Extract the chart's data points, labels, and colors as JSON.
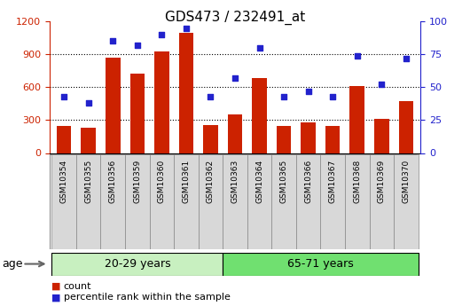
{
  "title": "GDS473 / 232491_at",
  "samples": [
    "GSM10354",
    "GSM10355",
    "GSM10356",
    "GSM10359",
    "GSM10360",
    "GSM10361",
    "GSM10362",
    "GSM10363",
    "GSM10364",
    "GSM10365",
    "GSM10366",
    "GSM10367",
    "GSM10368",
    "GSM10369",
    "GSM10370"
  ],
  "counts": [
    250,
    230,
    870,
    720,
    930,
    1100,
    255,
    350,
    680,
    245,
    280,
    245,
    610,
    310,
    470
  ],
  "percentiles": [
    43,
    38,
    85,
    82,
    90,
    95,
    43,
    57,
    80,
    43,
    47,
    43,
    74,
    52,
    72
  ],
  "group1_label": "20-29 years",
  "group2_label": "65-71 years",
  "group1_count": 7,
  "group2_count": 8,
  "age_label": "age",
  "bar_color": "#cc2200",
  "dot_color": "#2222cc",
  "ylim_left": [
    0,
    1200
  ],
  "ylim_right": [
    0,
    100
  ],
  "yticks_left": [
    0,
    300,
    600,
    900,
    1200
  ],
  "yticks_right": [
    0,
    25,
    50,
    75,
    100
  ],
  "legend_count": "count",
  "legend_percentile": "percentile rank within the sample",
  "group1_color": "#c8f0c0",
  "group2_color": "#70e070",
  "bg_color": "#ffffff",
  "tick_label_color_left": "#cc2200",
  "tick_label_color_right": "#2222cc",
  "tick_bg_color": "#d8d8d8",
  "tick_border_color": "#888888"
}
